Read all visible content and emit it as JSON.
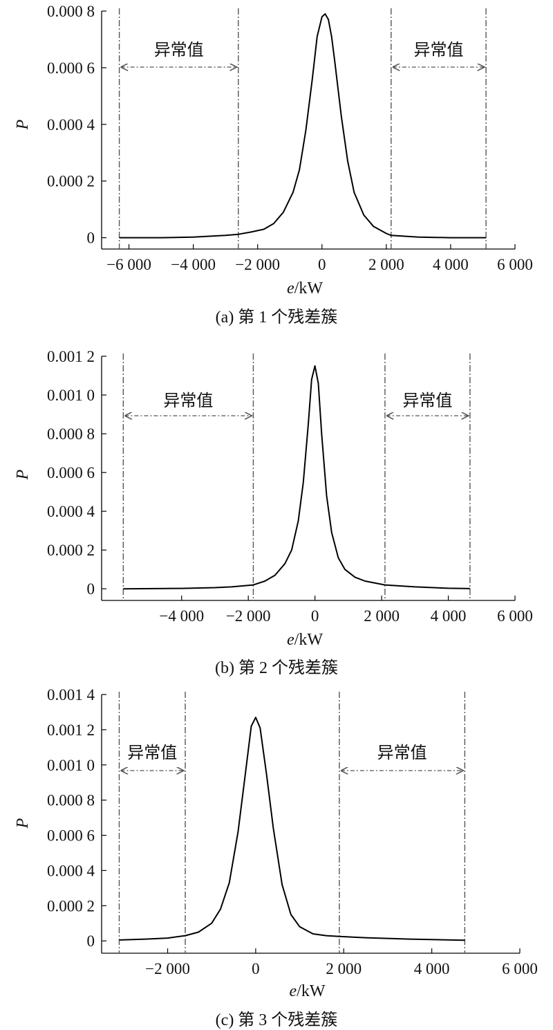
{
  "chart_data": [
    {
      "type": "line",
      "caption": "(a) 第 1 个残差簇",
      "xlabel_italic": "e",
      "xlabel_unit": "/kW",
      "ylabel": "P",
      "xlim": [
        -6850,
        6000
      ],
      "ylim": [
        -4e-05,
        0.0008
      ],
      "x_ticks": [
        -6000,
        -4000,
        -2000,
        0,
        2000,
        4000,
        6000
      ],
      "x_tick_labels": [
        "−6 000",
        "−4 000",
        "−2 000",
        "0",
        "2 000",
        "4 000",
        "6 000"
      ],
      "y_ticks": [
        0,
        0.0002,
        0.0004,
        0.0006,
        0.0008
      ],
      "y_tick_labels": [
        "0",
        "0.000 2",
        "0.000 4",
        "0.000 6",
        "0.000 8"
      ],
      "boundaries": [
        -6300,
        -2600,
        2150,
        5100
      ],
      "annotation": "异常值",
      "series": [
        {
          "x": [
            -6300,
            -5000,
            -4000,
            -3000,
            -2600,
            -2200,
            -1800,
            -1500,
            -1200,
            -900,
            -700,
            -500,
            -300,
            -150,
            0,
            100,
            200,
            300,
            400,
            600,
            800,
            1000,
            1300,
            1600,
            2000,
            2150,
            3000,
            4000,
            5100
          ],
          "y": [
            0,
            0,
            2e-06,
            8e-06,
            1.2e-05,
            2e-05,
            3e-05,
            5e-05,
            9e-05,
            0.00016,
            0.00024,
            0.00038,
            0.00056,
            0.00071,
            0.00078,
            0.00079,
            0.00077,
            0.00071,
            0.00062,
            0.00043,
            0.00027,
            0.00016,
            8e-05,
            4e-05,
            1.5e-05,
            8e-06,
            2e-06,
            0,
            0
          ]
        }
      ]
    },
    {
      "type": "line",
      "caption": "(b) 第 2 个残差簇",
      "xlabel_italic": "e",
      "xlabel_unit": "/kW",
      "ylabel": "P",
      "xlim": [
        -6400,
        6000
      ],
      "ylim": [
        -6e-05,
        0.0012
      ],
      "x_ticks": [
        -4000,
        -2000,
        0,
        2000,
        4000,
        6000
      ],
      "x_tick_labels": [
        "−4 000",
        "−2 000",
        "0",
        "2 000",
        "4 000",
        "6 000"
      ],
      "y_ticks": [
        0,
        0.0002,
        0.0004,
        0.0006,
        0.0008,
        0.001,
        0.0012
      ],
      "y_tick_labels": [
        "0",
        "0.000 2",
        "0.000 4",
        "0.000 6",
        "0.000 8",
        "0.001 0",
        "0.001 2"
      ],
      "boundaries": [
        -5750,
        -1850,
        2100,
        4650
      ],
      "annotation": "异常值",
      "series": [
        {
          "x": [
            -5750,
            -4000,
            -3000,
            -2500,
            -1850,
            -1500,
            -1200,
            -900,
            -700,
            -500,
            -350,
            -200,
            -100,
            0,
            100,
            200,
            350,
            500,
            700,
            900,
            1200,
            1500,
            2100,
            3000,
            4000,
            4650
          ],
          "y": [
            0,
            2e-06,
            6e-06,
            1e-05,
            2e-05,
            4e-05,
            7e-05,
            0.00013,
            0.0002,
            0.00035,
            0.00055,
            0.00085,
            0.00108,
            0.00115,
            0.00106,
            0.0008,
            0.00048,
            0.00029,
            0.00016,
            0.0001,
            6e-05,
            4e-05,
            2e-05,
            1e-05,
            3e-06,
            1e-06
          ]
        }
      ]
    },
    {
      "type": "line",
      "caption": "(c) 第 3 个残差簇",
      "xlabel_italic": "e",
      "xlabel_unit": "/kW",
      "ylabel": "P",
      "xlim": [
        -3500,
        6000
      ],
      "ylim": [
        -7e-05,
        0.0014
      ],
      "x_ticks": [
        -2000,
        0,
        2000,
        4000,
        6000
      ],
      "x_tick_labels": [
        "−2 000",
        "0",
        "2 000",
        "4 000",
        "6 000"
      ],
      "y_ticks": [
        0,
        0.0002,
        0.0004,
        0.0006,
        0.0008,
        0.001,
        0.0012,
        0.0014
      ],
      "y_tick_labels": [
        "0",
        "0.000 2",
        "0.000 4",
        "0.000 6",
        "0.000 8",
        "0.001 0",
        "0.001 2",
        "0.001 4"
      ],
      "boundaries": [
        -3100,
        -1600,
        1900,
        4750
      ],
      "annotation": "异常值",
      "series": [
        {
          "x": [
            -3100,
            -2500,
            -2000,
            -1600,
            -1300,
            -1000,
            -800,
            -600,
            -400,
            -250,
            -100,
            0,
            100,
            250,
            400,
            600,
            800,
            1000,
            1300,
            1600,
            1900,
            2500,
            3500,
            4750
          ],
          "y": [
            5e-06,
            1e-05,
            1.6e-05,
            3e-05,
            5e-05,
            0.0001,
            0.00018,
            0.00033,
            0.00062,
            0.00092,
            0.00122,
            0.00127,
            0.00121,
            0.00094,
            0.00064,
            0.00032,
            0.00015,
            8e-05,
            4e-05,
            3e-05,
            2.5e-05,
            1.8e-05,
            1e-05,
            4e-06
          ]
        }
      ]
    }
  ]
}
